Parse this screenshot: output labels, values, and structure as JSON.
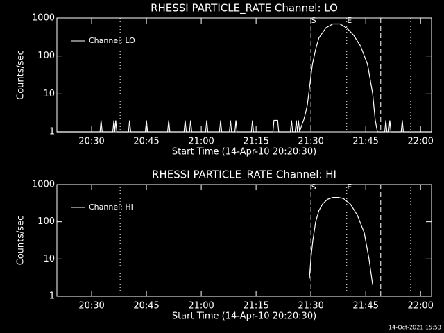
{
  "chart_data": [
    {
      "type": "line",
      "title": "RHESSI PARTICLE_RATE Channel: LO",
      "xlabel": "Start Time (14-Apr-10 20:20:30)",
      "ylabel": "Counts/sec",
      "x": [
        20.5,
        32.3,
        32.6,
        32.9,
        35.8,
        36.1,
        36.35,
        36.6,
        36.9,
        40.1,
        40.4,
        40.7,
        44.7,
        45.0,
        45.3,
        50.8,
        51.1,
        51.4,
        55.3,
        55.6,
        55.9,
        56.8,
        57.1,
        57.4,
        61.2,
        61.5,
        61.8,
        65.0,
        65.3,
        65.6,
        67.7,
        68.0,
        68.3,
        69.2,
        69.5,
        69.8,
        73.7,
        74.0,
        74.3,
        79.6,
        79.9,
        80.9,
        81.2,
        84.4,
        84.7,
        85.0,
        85.7,
        86.0,
        86.3,
        86.6,
        86.9,
        87.5,
        88.0,
        88.5,
        89.0,
        89.4,
        90.4,
        91.3,
        92.2,
        94.1,
        96.0,
        97.9,
        99.8,
        101.7,
        103.6,
        105.5,
        106.9,
        107.6,
        108.2,
        110.2,
        110.5,
        110.8,
        111.3,
        111.6,
        111.9,
        114.7,
        115.0,
        115.3,
        123
      ],
      "series": [
        {
          "name": "Channel: LO",
          "color": "#ffffff",
          "values": [
            1,
            1,
            2,
            1,
            1,
            2,
            1,
            2,
            1,
            1,
            2,
            1,
            1,
            2,
            1,
            1,
            2,
            1,
            1,
            2,
            1,
            1,
            2,
            1,
            1,
            2,
            1,
            1,
            2,
            1,
            1,
            2,
            1,
            1,
            2,
            1,
            1,
            2,
            1,
            1,
            2,
            2,
            1,
            1,
            2,
            1,
            1,
            2,
            1,
            2,
            1,
            1.5,
            2,
            3,
            5,
            10,
            60,
            150,
            300,
            550,
            700,
            700,
            550,
            350,
            180,
            60,
            10,
            2,
            1,
            1,
            2,
            1,
            1,
            2,
            1,
            1,
            2,
            1,
            1
          ]
        }
      ],
      "xlim": [
        20.5,
        123
      ],
      "ylim": [
        1,
        1000
      ],
      "log_y": true,
      "legend": "upper left",
      "xticks": [
        {
          "value": 30,
          "label": "20:30"
        },
        {
          "value": 45,
          "label": "20:45"
        },
        {
          "value": 60,
          "label": "21:00"
        },
        {
          "value": 75,
          "label": "21:15"
        },
        {
          "value": 90,
          "label": "21:30"
        },
        {
          "value": 105,
          "label": "21:45"
        },
        {
          "value": 120,
          "label": "22:00"
        }
      ],
      "yticks": [
        1,
        10,
        100,
        1000
      ],
      "vlines": [
        {
          "x": 37.8,
          "style": "dotted"
        },
        {
          "x": 90.0,
          "style": "dashed"
        },
        {
          "x": 99.8,
          "style": "dotted"
        },
        {
          "x": 109.1,
          "style": "dashed"
        },
        {
          "x": 117.3,
          "style": "dotted"
        }
      ],
      "annotations": [
        {
          "text": "S",
          "x": 90.0
        },
        {
          "text": "E",
          "x": 99.8
        }
      ]
    },
    {
      "type": "line",
      "title": "RHESSI PARTICLE_RATE Channel: HI",
      "xlabel": "Start Time (14-Apr-10 20:20:30)",
      "ylabel": "Counts/sec",
      "x": [
        89.6,
        90.0,
        90.5,
        91.3,
        92.2,
        93.2,
        94.5,
        96.0,
        97.5,
        98.9,
        100.8,
        102.7,
        104.6,
        105.9,
        106.9
      ],
      "series": [
        {
          "name": "Channel: HI",
          "color": "#ffffff",
          "values": [
            3,
            10,
            30,
            100,
            200,
            300,
            400,
            450,
            450,
            420,
            300,
            150,
            50,
            10,
            2
          ]
        }
      ],
      "xlim": [
        20.5,
        123
      ],
      "ylim": [
        1,
        1000
      ],
      "log_y": true,
      "legend": "upper left",
      "xticks": [
        {
          "value": 30,
          "label": "20:30"
        },
        {
          "value": 45,
          "label": "20:45"
        },
        {
          "value": 60,
          "label": "21:00"
        },
        {
          "value": 75,
          "label": "21:15"
        },
        {
          "value": 90,
          "label": "21:30"
        },
        {
          "value": 105,
          "label": "21:45"
        },
        {
          "value": 120,
          "label": "22:00"
        }
      ],
      "yticks": [
        1,
        10,
        100,
        1000
      ],
      "vlines": [
        {
          "x": 37.8,
          "style": "dotted"
        },
        {
          "x": 90.0,
          "style": "dashed"
        },
        {
          "x": 99.8,
          "style": "dotted"
        },
        {
          "x": 109.1,
          "style": "dashed"
        },
        {
          "x": 117.3,
          "style": "dotted"
        }
      ],
      "annotations": [
        {
          "text": "S",
          "x": 90.0
        },
        {
          "text": "E",
          "x": 99.8
        }
      ]
    }
  ],
  "footer": "14-Oct-2021 15:53"
}
